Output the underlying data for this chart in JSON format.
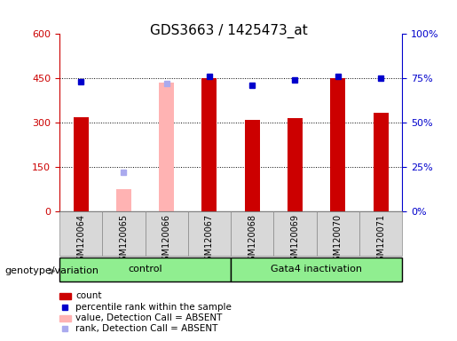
{
  "title": "GDS3663 / 1425473_at",
  "samples": [
    "GSM120064",
    "GSM120065",
    "GSM120066",
    "GSM120067",
    "GSM120068",
    "GSM120069",
    "GSM120070",
    "GSM120071"
  ],
  "count_values": [
    320,
    null,
    null,
    450,
    310,
    315,
    450,
    335
  ],
  "count_absent_values": [
    null,
    75,
    435,
    null,
    null,
    null,
    null,
    null
  ],
  "percentile_values": [
    73,
    null,
    null,
    76,
    71,
    74,
    76,
    75
  ],
  "percentile_absent_values": [
    null,
    22,
    72,
    null,
    null,
    null,
    null,
    null
  ],
  "groups": [
    {
      "label": "control",
      "indices": [
        0,
        1,
        2,
        3
      ]
    },
    {
      "label": "Gata4 inactivation",
      "indices": [
        4,
        5,
        6,
        7
      ]
    }
  ],
  "ylim_left": [
    0,
    600
  ],
  "ylim_right": [
    0,
    100
  ],
  "yticks_left": [
    0,
    150,
    300,
    450,
    600
  ],
  "ytick_labels_left": [
    "0",
    "150",
    "300",
    "450",
    "600"
  ],
  "ytick_labels_right": [
    "0%",
    "25%",
    "50%",
    "75%",
    "100%"
  ],
  "yticks_right": [
    0,
    25,
    50,
    75,
    100
  ],
  "bar_color": "#cc0000",
  "bar_absent_color": "#ffb3b3",
  "dot_color": "#0000cc",
  "dot_absent_color": "#aaaaee",
  "left_axis_color": "#cc0000",
  "right_axis_color": "#0000cc",
  "bg_color": "#ffffff",
  "plot_bg_color": "#ffffff",
  "grid_color": "#000000",
  "genotype_label": "genotype/variation",
  "legend_items": [
    {
      "label": "count",
      "color": "#cc0000",
      "type": "bar"
    },
    {
      "label": "percentile rank within the sample",
      "color": "#0000cc",
      "type": "dot"
    },
    {
      "label": "value, Detection Call = ABSENT",
      "color": "#ffb3b3",
      "type": "bar"
    },
    {
      "label": "rank, Detection Call = ABSENT",
      "color": "#aaaaee",
      "type": "dot"
    }
  ]
}
